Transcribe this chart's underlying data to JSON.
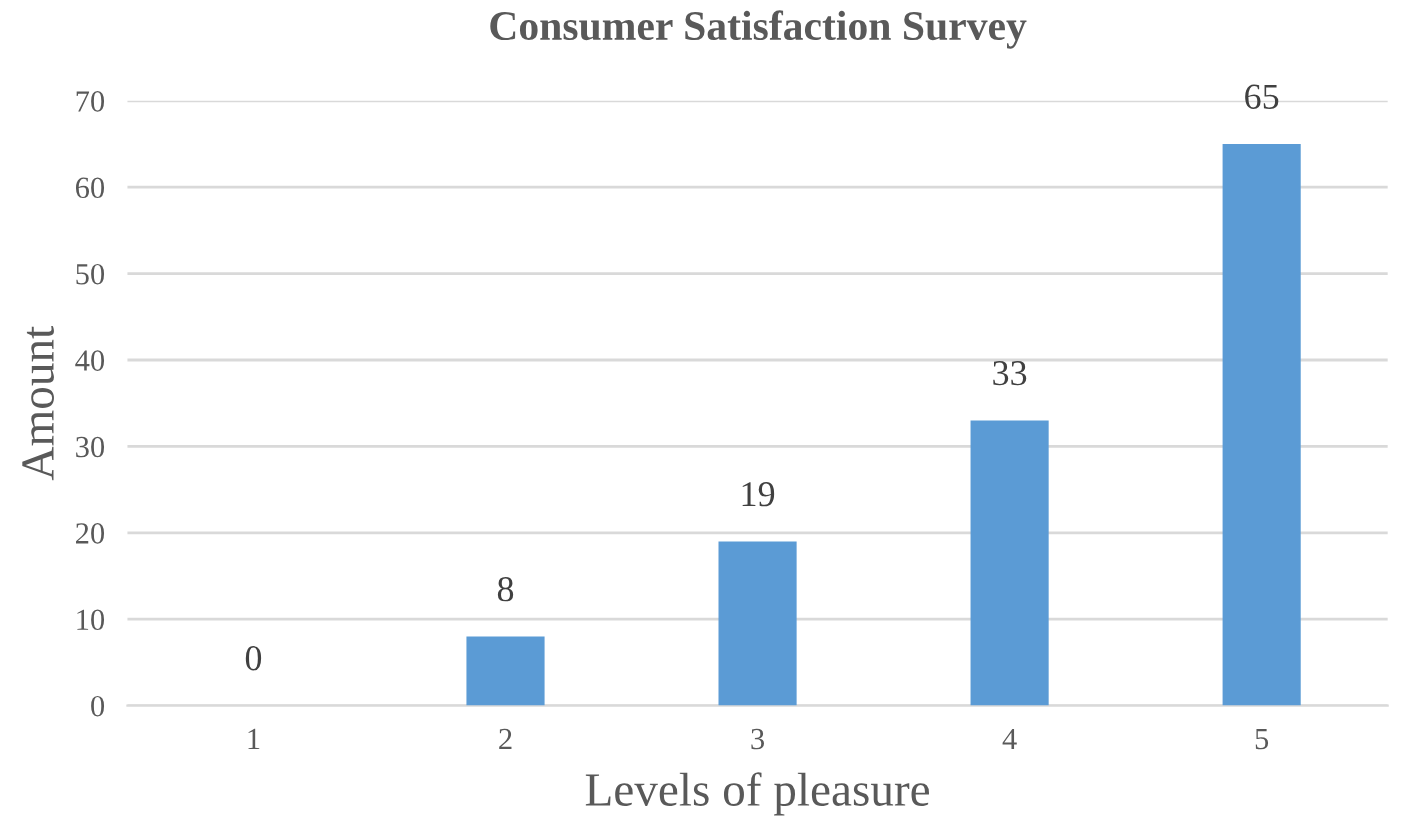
{
  "chart_data": {
    "type": "bar",
    "title": "Consumer Satisfaction Survey",
    "xlabel": "Levels of pleasure",
    "ylabel": "Amount",
    "categories": [
      "1",
      "2",
      "3",
      "4",
      "5"
    ],
    "values": [
      0,
      8,
      19,
      33,
      65
    ],
    "color": "#5b9bd5",
    "ylim": [
      0,
      70
    ],
    "yticks": [
      0,
      10,
      20,
      30,
      40,
      50,
      60,
      70
    ],
    "grid": "y",
    "data_labels": true
  }
}
